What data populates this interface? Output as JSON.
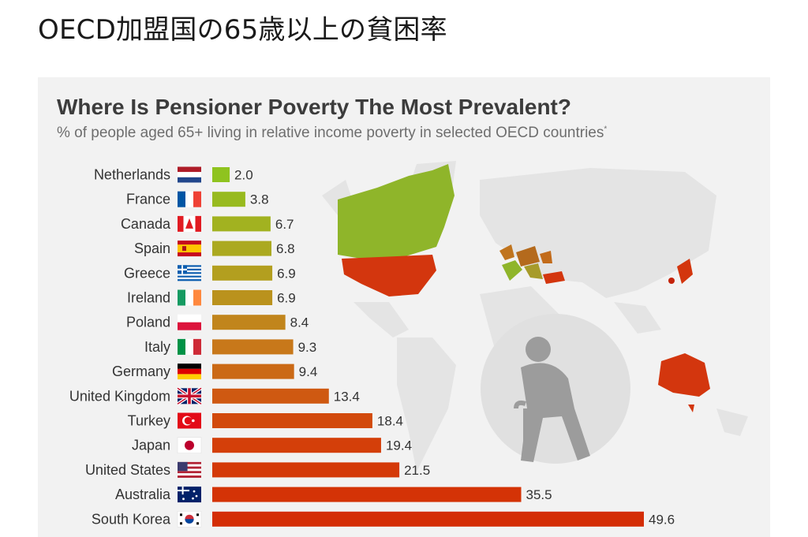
{
  "page": {
    "heading": "OECD加盟国の65歳以上の貧困率"
  },
  "chart_data": {
    "type": "bar",
    "orientation": "horizontal",
    "title": "Where Is Pensioner Poverty The Most Prevalent?",
    "subtitle": "% of people aged 65+ living in relative income poverty in selected OECD countries",
    "subtitle_mark": "*",
    "categories": [
      "Netherlands",
      "France",
      "Canada",
      "Spain",
      "Greece",
      "Ireland",
      "Poland",
      "Italy",
      "Germany",
      "United Kingdom",
      "Turkey",
      "Japan",
      "United States",
      "Australia",
      "South Korea"
    ],
    "values": [
      2.0,
      3.8,
      6.7,
      6.8,
      6.9,
      6.9,
      8.4,
      9.3,
      9.4,
      13.4,
      18.4,
      19.4,
      21.5,
      35.5,
      49.6
    ],
    "value_labels": [
      "2.0",
      "3.8",
      "6.7",
      "6.8",
      "6.9",
      "6.9",
      "8.4",
      "9.3",
      "9.4",
      "13.4",
      "18.4",
      "19.4",
      "21.5",
      "35.5",
      "49.6"
    ],
    "flags": [
      "netherlands-flag",
      "france-flag",
      "canada-flag",
      "spain-flag",
      "greece-flag",
      "ireland-flag",
      "poland-flag",
      "italy-flag",
      "germany-flag",
      "united-kingdom-flag",
      "turkey-flag",
      "japan-flag",
      "united-states-flag",
      "australia-flag",
      "south-korea-flag"
    ],
    "xlim": [
      0,
      49.6
    ],
    "grid": false,
    "legend": "none",
    "color_scale": [
      "#8fc31f",
      "#b0a520",
      "#c8781a",
      "#d4420a",
      "#d42d05"
    ],
    "background_map_icon": "world-map",
    "overlay_icon": "elderly-person-with-cane-icon"
  }
}
